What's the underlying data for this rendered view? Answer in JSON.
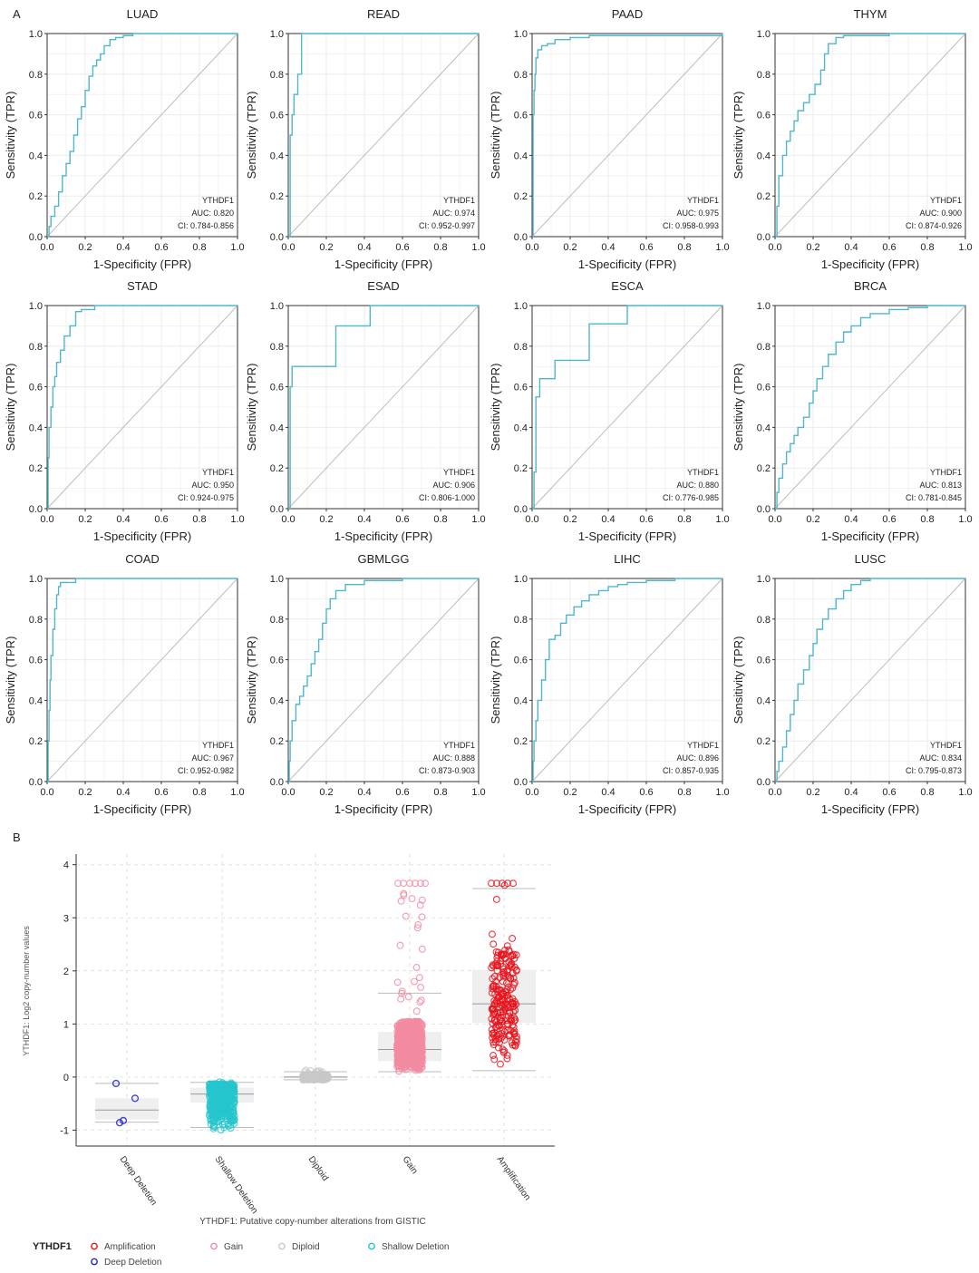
{
  "panel_labels": {
    "a": "A",
    "b": "B"
  },
  "colors": {
    "roc_line": "#4fb6cf",
    "diagonal": "#bdbdbd",
    "grid": "#ebebeb",
    "amplification": "#e8141c",
    "gain": "#f28ba1",
    "diploid": "#c8c8c8",
    "shallow_deletion": "#26c6cc",
    "deep_deletion": "#2424d6"
  },
  "chart_data": [
    {
      "type": "line",
      "subtype": "roc_grid",
      "xlabel": "1-Specificity (FPR)",
      "ylabel": "Sensitivity (TPR)",
      "xlim": [
        0,
        1
      ],
      "ylim": [
        0,
        1
      ],
      "ticks": [
        "0.0",
        "0.2",
        "0.4",
        "0.6",
        "0.8",
        "1.0"
      ],
      "legend_title": "YTHDF1",
      "panels": [
        {
          "title": "LUAD",
          "auc": "AUC: 0.820",
          "ci": "CI: 0.784-0.856",
          "x": [
            0,
            0.01,
            0.02,
            0.04,
            0.06,
            0.08,
            0.1,
            0.12,
            0.14,
            0.16,
            0.18,
            0.2,
            0.22,
            0.24,
            0.26,
            0.28,
            0.3,
            0.33,
            0.36,
            0.4,
            0.45,
            0.5,
            0.6,
            0.8,
            1.0
          ],
          "y": [
            0,
            0.05,
            0.1,
            0.15,
            0.22,
            0.3,
            0.36,
            0.42,
            0.5,
            0.58,
            0.64,
            0.72,
            0.79,
            0.84,
            0.87,
            0.9,
            0.94,
            0.97,
            0.98,
            0.99,
            1.0,
            1.0,
            1.0,
            1.0,
            1.0
          ]
        },
        {
          "title": "READ",
          "auc": "AUC: 0.974",
          "ci": "CI: 0.952-0.997",
          "x": [
            0,
            0.01,
            0.01,
            0.02,
            0.02,
            0.03,
            0.03,
            0.05,
            0.05,
            0.07,
            0.07,
            1.0
          ],
          "y": [
            0,
            0.2,
            0.5,
            0.5,
            0.6,
            0.6,
            0.7,
            0.7,
            0.8,
            0.8,
            1.0,
            1.0
          ]
        },
        {
          "title": "PAAD",
          "auc": "AUC: 0.975",
          "ci": "CI: 0.958-0.993",
          "x": [
            0,
            0.005,
            0.01,
            0.015,
            0.02,
            0.03,
            0.05,
            0.08,
            0.12,
            0.2,
            0.3,
            0.5,
            1.0
          ],
          "y": [
            0,
            0.6,
            0.72,
            0.8,
            0.88,
            0.92,
            0.94,
            0.95,
            0.97,
            0.98,
            0.99,
            0.99,
            1.0
          ]
        },
        {
          "title": "THYM",
          "auc": "AUC: 0.900",
          "ci": "CI: 0.874-0.926",
          "x": [
            0,
            0.01,
            0.02,
            0.04,
            0.06,
            0.08,
            0.1,
            0.12,
            0.15,
            0.18,
            0.21,
            0.24,
            0.26,
            0.28,
            0.32,
            0.36,
            0.42,
            0.6,
            0.8,
            1.0
          ],
          "y": [
            0,
            0.15,
            0.3,
            0.4,
            0.47,
            0.52,
            0.57,
            0.62,
            0.66,
            0.7,
            0.75,
            0.82,
            0.9,
            0.95,
            0.98,
            0.99,
            0.99,
            1.0,
            1.0,
            1.0
          ]
        },
        {
          "title": "STAD",
          "auc": "AUC: 0.950",
          "ci": "CI: 0.924-0.975",
          "x": [
            0,
            0.005,
            0.01,
            0.02,
            0.03,
            0.04,
            0.05,
            0.07,
            0.09,
            0.12,
            0.15,
            0.18,
            0.25,
            1.0
          ],
          "y": [
            0,
            0.25,
            0.4,
            0.5,
            0.6,
            0.65,
            0.72,
            0.78,
            0.85,
            0.9,
            0.97,
            0.98,
            1.0,
            1.0
          ]
        },
        {
          "title": "ESAD",
          "auc": "AUC: 0.906",
          "ci": "CI: 0.806-1.000",
          "x": [
            0,
            0.01,
            0.01,
            0.02,
            0.02,
            0.25,
            0.25,
            0.43,
            0.43,
            1.0
          ],
          "y": [
            0,
            0.0,
            0.6,
            0.6,
            0.7,
            0.7,
            0.9,
            0.9,
            1.0,
            1.0
          ]
        },
        {
          "title": "ESCA",
          "auc": "AUC: 0.880",
          "ci": "CI: 0.776-0.985",
          "x": [
            0,
            0.01,
            0.01,
            0.02,
            0.02,
            0.04,
            0.04,
            0.12,
            0.12,
            0.3,
            0.3,
            0.5,
            0.5,
            1.0
          ],
          "y": [
            0,
            0.0,
            0.18,
            0.18,
            0.55,
            0.55,
            0.64,
            0.64,
            0.73,
            0.73,
            0.91,
            0.91,
            1.0,
            1.0
          ]
        },
        {
          "title": "BRCA",
          "auc": "AUC: 0.813",
          "ci": "CI: 0.781-0.845",
          "x": [
            0,
            0.01,
            0.02,
            0.04,
            0.06,
            0.08,
            0.1,
            0.12,
            0.15,
            0.18,
            0.2,
            0.22,
            0.25,
            0.28,
            0.32,
            0.36,
            0.4,
            0.45,
            0.5,
            0.6,
            0.7,
            0.8,
            1.0
          ],
          "y": [
            0,
            0.08,
            0.15,
            0.22,
            0.28,
            0.32,
            0.36,
            0.4,
            0.45,
            0.52,
            0.58,
            0.64,
            0.7,
            0.76,
            0.82,
            0.87,
            0.9,
            0.94,
            0.96,
            0.98,
            0.99,
            1.0,
            1.0
          ]
        },
        {
          "title": "COAD",
          "auc": "AUC: 0.967",
          "ci": "CI: 0.952-0.982",
          "x": [
            0,
            0.005,
            0.01,
            0.015,
            0.02,
            0.03,
            0.04,
            0.05,
            0.06,
            0.07,
            0.1,
            0.15,
            0.2,
            1.0
          ],
          "y": [
            0,
            0.2,
            0.35,
            0.5,
            0.62,
            0.75,
            0.85,
            0.92,
            0.96,
            0.98,
            0.98,
            1.0,
            1.0,
            1.0
          ]
        },
        {
          "title": "GBMLGG",
          "auc": "AUC: 0.888",
          "ci": "CI: 0.873-0.903",
          "x": [
            0,
            0.005,
            0.01,
            0.02,
            0.04,
            0.06,
            0.08,
            0.1,
            0.12,
            0.14,
            0.16,
            0.18,
            0.2,
            0.22,
            0.25,
            0.3,
            0.4,
            0.6,
            1.0
          ],
          "y": [
            0,
            0.1,
            0.2,
            0.3,
            0.38,
            0.42,
            0.47,
            0.52,
            0.58,
            0.64,
            0.7,
            0.78,
            0.85,
            0.9,
            0.94,
            0.97,
            0.99,
            1.0,
            1.0
          ]
        },
        {
          "title": "LIHC",
          "auc": "AUC: 0.896",
          "ci": "CI: 0.857-0.935",
          "x": [
            0,
            0.005,
            0.01,
            0.02,
            0.03,
            0.05,
            0.07,
            0.09,
            0.12,
            0.15,
            0.18,
            0.22,
            0.26,
            0.3,
            0.35,
            0.4,
            0.45,
            0.5,
            0.6,
            0.75,
            1.0
          ],
          "y": [
            0,
            0.1,
            0.2,
            0.3,
            0.4,
            0.5,
            0.6,
            0.7,
            0.72,
            0.78,
            0.82,
            0.86,
            0.89,
            0.92,
            0.94,
            0.96,
            0.97,
            0.98,
            0.99,
            1.0,
            1.0
          ]
        },
        {
          "title": "LUSC",
          "auc": "AUC: 0.834",
          "ci": "CI: 0.795-0.873",
          "x": [
            0,
            0.01,
            0.02,
            0.04,
            0.06,
            0.08,
            0.1,
            0.12,
            0.15,
            0.18,
            0.2,
            0.22,
            0.25,
            0.28,
            0.32,
            0.36,
            0.4,
            0.45,
            0.5,
            0.6,
            0.8,
            1.0
          ],
          "y": [
            0,
            0.05,
            0.1,
            0.17,
            0.25,
            0.33,
            0.4,
            0.48,
            0.55,
            0.62,
            0.68,
            0.75,
            0.8,
            0.85,
            0.9,
            0.94,
            0.97,
            0.99,
            1.0,
            1.0,
            1.0,
            1.0
          ]
        }
      ]
    },
    {
      "type": "scatter",
      "subtype": "box_jitter",
      "xlabel": "YTHDF1: Putative copy-number alterations from GISTIC",
      "ylabel": "YTHDF1: Log2 copy-number values",
      "ylim": [
        -1.3,
        4.2
      ],
      "yticks": [
        "-1",
        "0",
        "1",
        "2",
        "3",
        "4"
      ],
      "categories": [
        "Deep Deletion",
        "Shallow Deletion",
        "Diploid",
        "Gain",
        "Amplification"
      ],
      "series": [
        {
          "name": "Deep Deletion",
          "n": 4,
          "min": -0.85,
          "q1": -0.8,
          "median": -0.62,
          "q3": -0.4,
          "max": -0.12,
          "wlo": -0.85,
          "whi": -0.12,
          "jmin": -0.85,
          "jmax": -0.1
        },
        {
          "name": "Shallow Deletion",
          "n": 500,
          "min": -1.0,
          "q1": -0.48,
          "median": -0.32,
          "q3": -0.2,
          "max": -0.08,
          "wlo": -0.95,
          "whi": -0.1,
          "jmin": -1.0,
          "jmax": -0.08
        },
        {
          "name": "Diploid",
          "n": 300,
          "min": -0.05,
          "q1": -0.02,
          "median": 0.0,
          "q3": 0.02,
          "max": 0.1,
          "wlo": -0.05,
          "whi": 0.1,
          "jmin": -0.06,
          "jmax": 0.14
        },
        {
          "name": "Gain",
          "n": 800,
          "min": 0.1,
          "q1": 0.3,
          "median": 0.52,
          "q3": 0.85,
          "max": 3.65,
          "wlo": 0.1,
          "whi": 1.58,
          "jmin": 0.1,
          "jmax": 3.65
        },
        {
          "name": "Amplification",
          "n": 220,
          "min": 0.1,
          "q1": 1.02,
          "median": 1.38,
          "q3": 2.02,
          "max": 3.65,
          "wlo": 0.12,
          "whi": 3.55,
          "jmin": 0.12,
          "jmax": 3.65
        }
      ],
      "legend": {
        "title": "YTHDF1",
        "items": [
          "Amplification",
          "Gain",
          "Diploid",
          "Shallow Deletion",
          "Deep Deletion"
        ]
      }
    }
  ]
}
